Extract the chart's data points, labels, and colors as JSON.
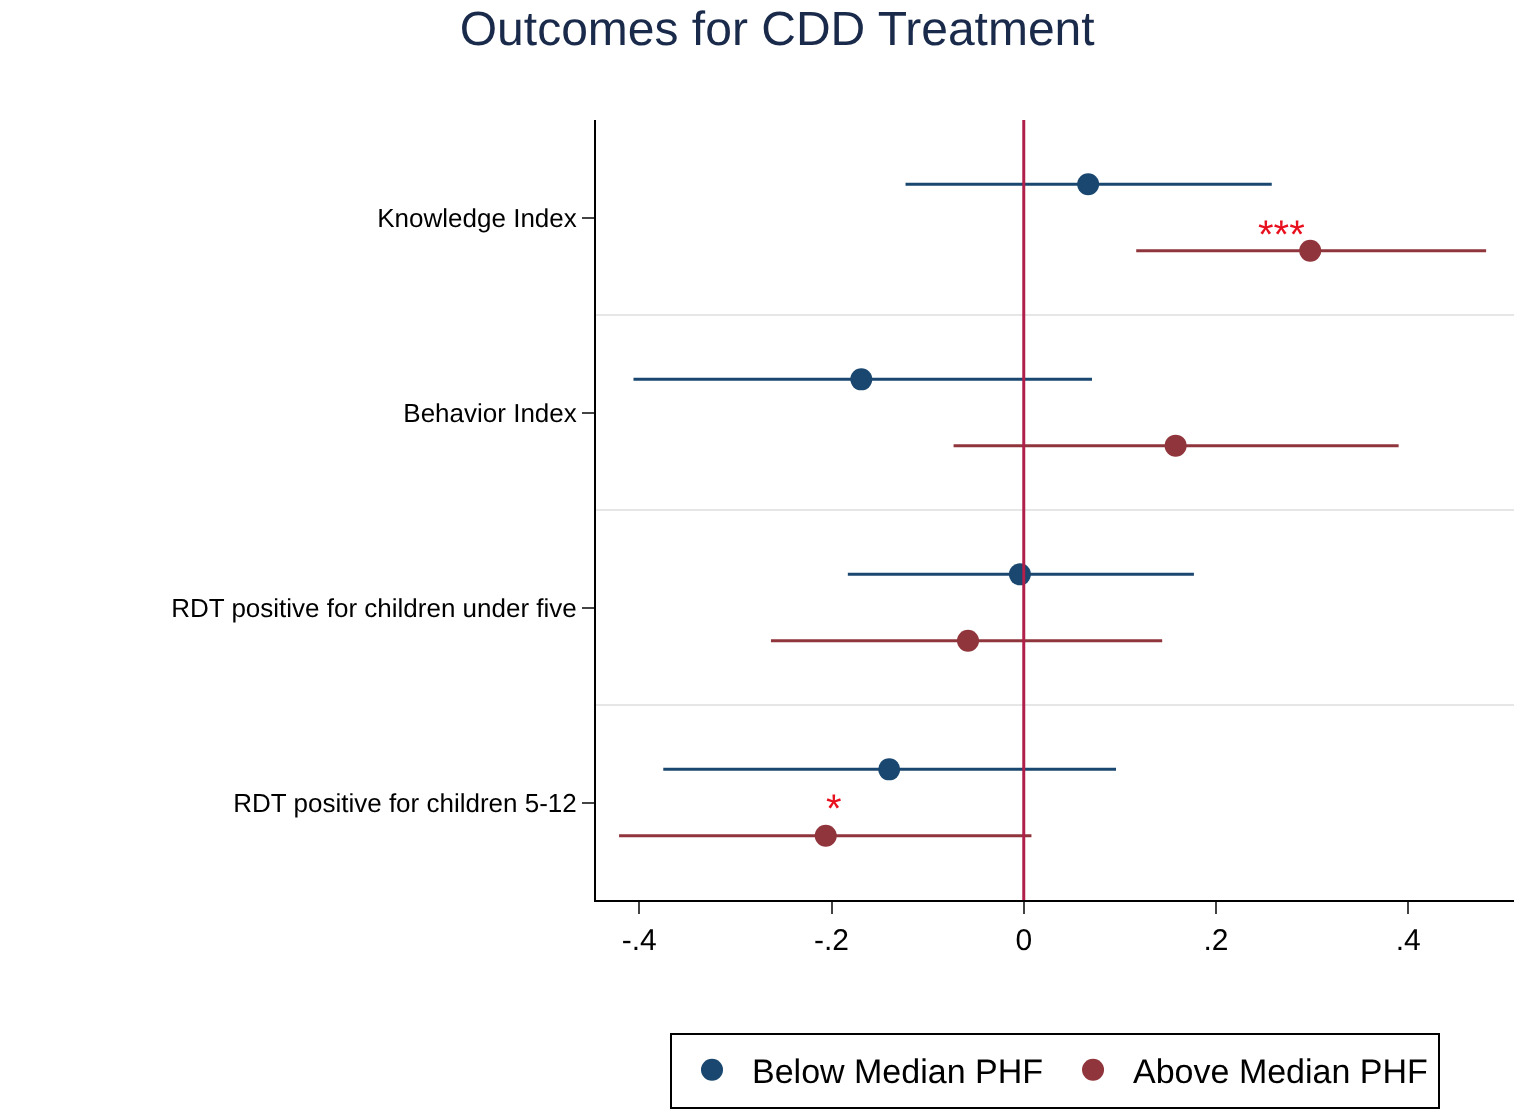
{
  "chart_data": {
    "type": "scatter",
    "orientation": "horizontal",
    "title": "Outcomes for CDD Treatment",
    "categories": [
      "Knowledge Index",
      "Behavior Index",
      "RDT positive for children under five",
      "RDT positive for children 5-12"
    ],
    "series": [
      {
        "name": "Below Median PHF",
        "color": "#1a476f",
        "values": [
          0.067,
          -0.169,
          -0.004,
          -0.14
        ],
        "errors": [
          [
            -0.123,
            0.258
          ],
          [
            -0.406,
            0.071
          ],
          [
            -0.183,
            0.177
          ],
          [
            -0.375,
            0.096
          ]
        ]
      },
      {
        "name": "Above Median PHF",
        "color": "#90353b",
        "values": [
          0.298,
          0.158,
          -0.058,
          -0.206
        ],
        "errors": [
          [
            0.117,
            0.481
          ],
          [
            -0.073,
            0.39
          ],
          [
            -0.263,
            0.144
          ],
          [
            -0.421,
            0.008
          ]
        ]
      }
    ],
    "xlim": [
      -0.445,
      0.51
    ],
    "xticks": [
      {
        "value": -0.4,
        "label": "-.4"
      },
      {
        "value": -0.2,
        "label": "-.2"
      },
      0,
      {
        "value": 0.2,
        "label": ".2"
      },
      {
        "value": 0.4,
        "label": ".4"
      }
    ],
    "ref_lines": [
      {
        "axis": "x",
        "value": 0,
        "color": "#b0204a"
      }
    ],
    "annotations": [
      "***",
      "*"
    ],
    "grid": "y",
    "legend": "bottom",
    "marker": "circle"
  }
}
